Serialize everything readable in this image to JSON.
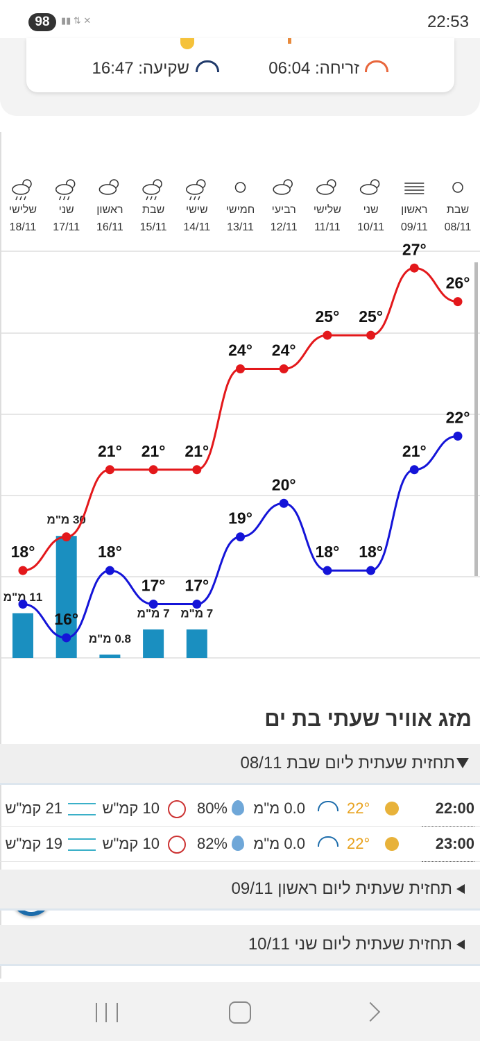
{
  "status_bar": {
    "battery": "98",
    "time": "22:53"
  },
  "sun_times": {
    "sunrise": "זריחה: 06:04",
    "sunset": "שקיעה: 16:47"
  },
  "chart_data": {
    "type": "line",
    "categories": [
      "שבת",
      "ראשון",
      "שני",
      "שלישי",
      "רביעי",
      "חמישי",
      "שישי",
      "שבת",
      "ראשון",
      "שני",
      "שלישי"
    ],
    "dates": [
      "08/11",
      "09/11",
      "10/11",
      "11/11",
      "12/11",
      "13/11",
      "14/11",
      "15/11",
      "16/11",
      "17/11",
      "18/11"
    ],
    "ylim": [
      15.4,
      27.5
    ],
    "y2lim": [
      0,
      100
    ],
    "series": [
      {
        "color": "#e3181b",
        "values": [
          26,
          27,
          25,
          25,
          24,
          24,
          21,
          21,
          21,
          19,
          18
        ],
        "value_labels": [
          "26°",
          "27°",
          "25°",
          "25°",
          "24°",
          "24°",
          "21°",
          "21°",
          "21°",
          null,
          "18°"
        ]
      },
      {
        "color": "#1414d8",
        "values": [
          22,
          21,
          18,
          18,
          20,
          19,
          17,
          17,
          18,
          16,
          17
        ],
        "value_labels": [
          "22°",
          "21°",
          "18°",
          "18°",
          "20°",
          "19°",
          "17°",
          "17°",
          "18°",
          "16°",
          null
        ]
      },
      {
        "type": "bar",
        "axis": "y2",
        "color": "#1a8fc0",
        "values": [
          null,
          null,
          null,
          null,
          null,
          null,
          7,
          7,
          0.8,
          30,
          11
        ],
        "value_labels": [
          null,
          null,
          null,
          null,
          null,
          null,
          "7 מ\"מ",
          "7 מ\"מ",
          "0.8 מ\"מ",
          "30 מ\"מ",
          "11 מ\"מ"
        ]
      }
    ]
  },
  "hourly": {
    "title": "מזג אוויר שעתי בת ים",
    "open_day": "תחזית שעתית ליום שבת 08/11",
    "rows": [
      {
        "time": "22:00",
        "temp": "22°",
        "rain": "0.0 מ\"מ",
        "humidity": "80%",
        "wind": "10 קמ\"ש",
        "gust": "21 קמ\"ש"
      },
      {
        "time": "23:00",
        "temp": "22°",
        "rain": "0.0 מ\"מ",
        "humidity": "82%",
        "wind": "10 קמ\"ש",
        "gust": "19 קמ\"ש"
      }
    ],
    "closed_days": [
      "תחזית שעתית ליום ראשון 09/11",
      "תחזית שעתית ליום שני 10/11"
    ]
  }
}
